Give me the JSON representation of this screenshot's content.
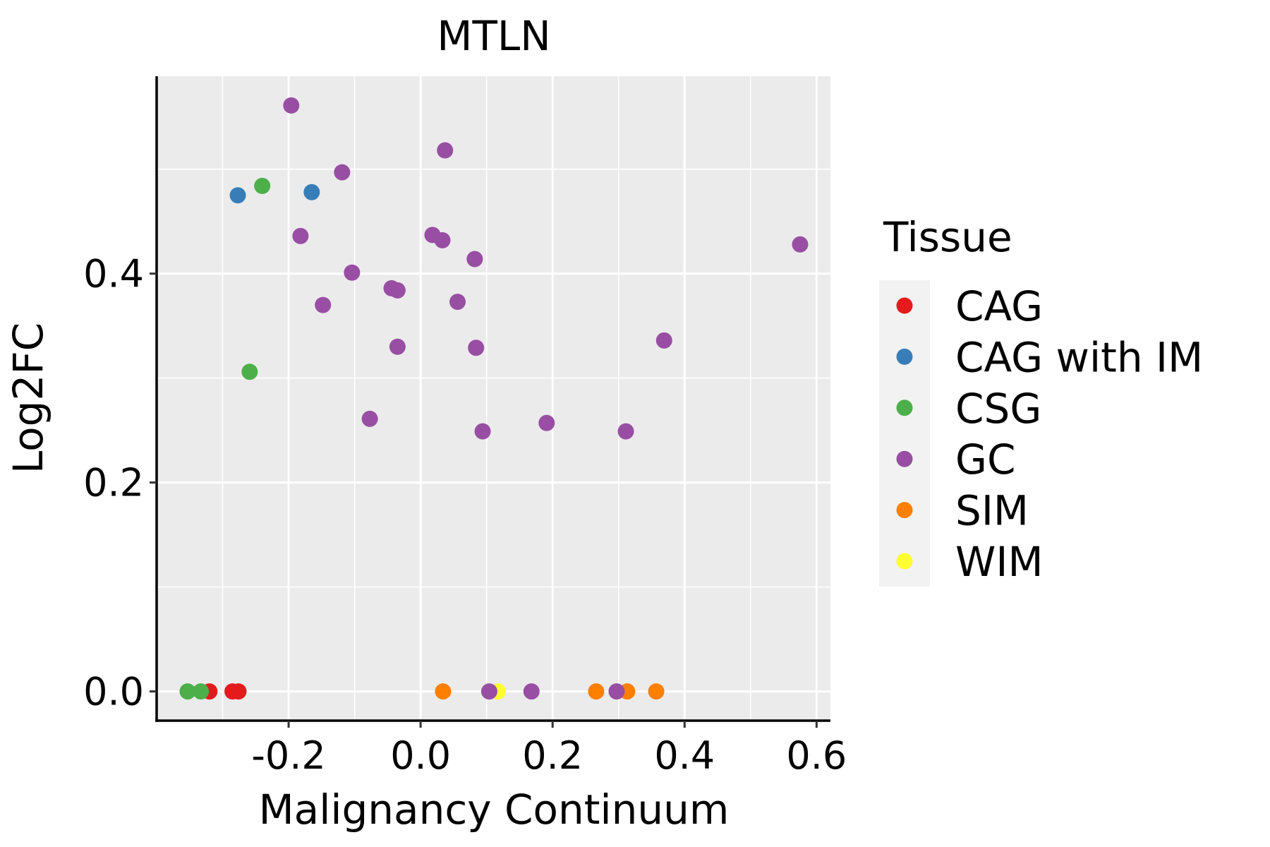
{
  "chart_data": {
    "type": "scatter",
    "title": "MTLN",
    "xlabel": "Malignancy Continuum",
    "ylabel": "Log2FC",
    "xlim": [
      -0.4,
      0.621
    ],
    "ylim": [
      -0.028,
      0.589
    ],
    "x_ticks": [
      -0.2,
      0.0,
      0.2,
      0.4,
      0.6
    ],
    "x_tick_labels": [
      "-0.2",
      "0.0",
      "0.2",
      "0.4",
      "0.6"
    ],
    "x_minor": [
      -0.3,
      -0.1,
      0.1,
      0.3,
      0.5
    ],
    "y_ticks": [
      0.0,
      0.2,
      0.4
    ],
    "y_tick_labels": [
      "0.0",
      "0.2",
      "0.4"
    ],
    "y_minor": [
      0.1,
      0.3,
      0.5
    ],
    "grid": true,
    "legend": {
      "title": "Tissue",
      "placement": "right",
      "entries": [
        {
          "name": "CAG",
          "color": "#e41a1c"
        },
        {
          "name": "CAG with IM",
          "color": "#377eb8"
        },
        {
          "name": "CSG",
          "color": "#4daf4a"
        },
        {
          "name": "GC",
          "color": "#984ea3"
        },
        {
          "name": "SIM",
          "color": "#ff7f00"
        },
        {
          "name": "WIM",
          "color": "#ffff33"
        }
      ]
    },
    "series": [
      {
        "name": "CAG",
        "color": "#e41a1c",
        "points": [
          {
            "x": -0.32,
            "y": 0.0
          },
          {
            "x": -0.285,
            "y": 0.0
          },
          {
            "x": -0.276,
            "y": 0.0
          }
        ]
      },
      {
        "name": "CAG with IM",
        "color": "#377eb8",
        "points": [
          {
            "x": -0.277,
            "y": 0.475
          },
          {
            "x": -0.165,
            "y": 0.478
          }
        ]
      },
      {
        "name": "CSG",
        "color": "#4daf4a",
        "points": [
          {
            "x": -0.353,
            "y": 0.0
          },
          {
            "x": -0.333,
            "y": 0.0
          },
          {
            "x": -0.24,
            "y": 0.484
          },
          {
            "x": -0.259,
            "y": 0.306
          }
        ]
      },
      {
        "name": "GC",
        "color": "#984ea3",
        "points": [
          {
            "x": -0.196,
            "y": 0.561
          },
          {
            "x": -0.119,
            "y": 0.497
          },
          {
            "x": -0.182,
            "y": 0.436
          },
          {
            "x": -0.104,
            "y": 0.401
          },
          {
            "x": -0.148,
            "y": 0.37
          },
          {
            "x": -0.044,
            "y": 0.386
          },
          {
            "x": -0.035,
            "y": 0.384
          },
          {
            "x": -0.035,
            "y": 0.33
          },
          {
            "x": -0.077,
            "y": 0.261
          },
          {
            "x": 0.037,
            "y": 0.518
          },
          {
            "x": 0.018,
            "y": 0.437
          },
          {
            "x": 0.033,
            "y": 0.432
          },
          {
            "x": 0.082,
            "y": 0.414
          },
          {
            "x": 0.056,
            "y": 0.373
          },
          {
            "x": 0.084,
            "y": 0.329
          },
          {
            "x": 0.094,
            "y": 0.249
          },
          {
            "x": 0.191,
            "y": 0.257
          },
          {
            "x": 0.311,
            "y": 0.249
          },
          {
            "x": 0.369,
            "y": 0.336
          },
          {
            "x": 0.575,
            "y": 0.428
          },
          {
            "x": 0.104,
            "y": 0.0
          },
          {
            "x": 0.168,
            "y": 0.0
          },
          {
            "x": 0.297,
            "y": 0.0
          }
        ]
      },
      {
        "name": "SIM",
        "color": "#ff7f00",
        "points": [
          {
            "x": 0.034,
            "y": 0.0
          },
          {
            "x": 0.266,
            "y": 0.0
          },
          {
            "x": 0.313,
            "y": 0.0
          },
          {
            "x": 0.357,
            "y": 0.0
          }
        ]
      },
      {
        "name": "WIM",
        "color": "#ffff33",
        "points": [
          {
            "x": 0.117,
            "y": 0.0
          }
        ]
      }
    ],
    "draw_order": [
      "WIM",
      "SIM",
      "CAG",
      "CSG",
      "CAG with IM",
      "GC"
    ]
  }
}
